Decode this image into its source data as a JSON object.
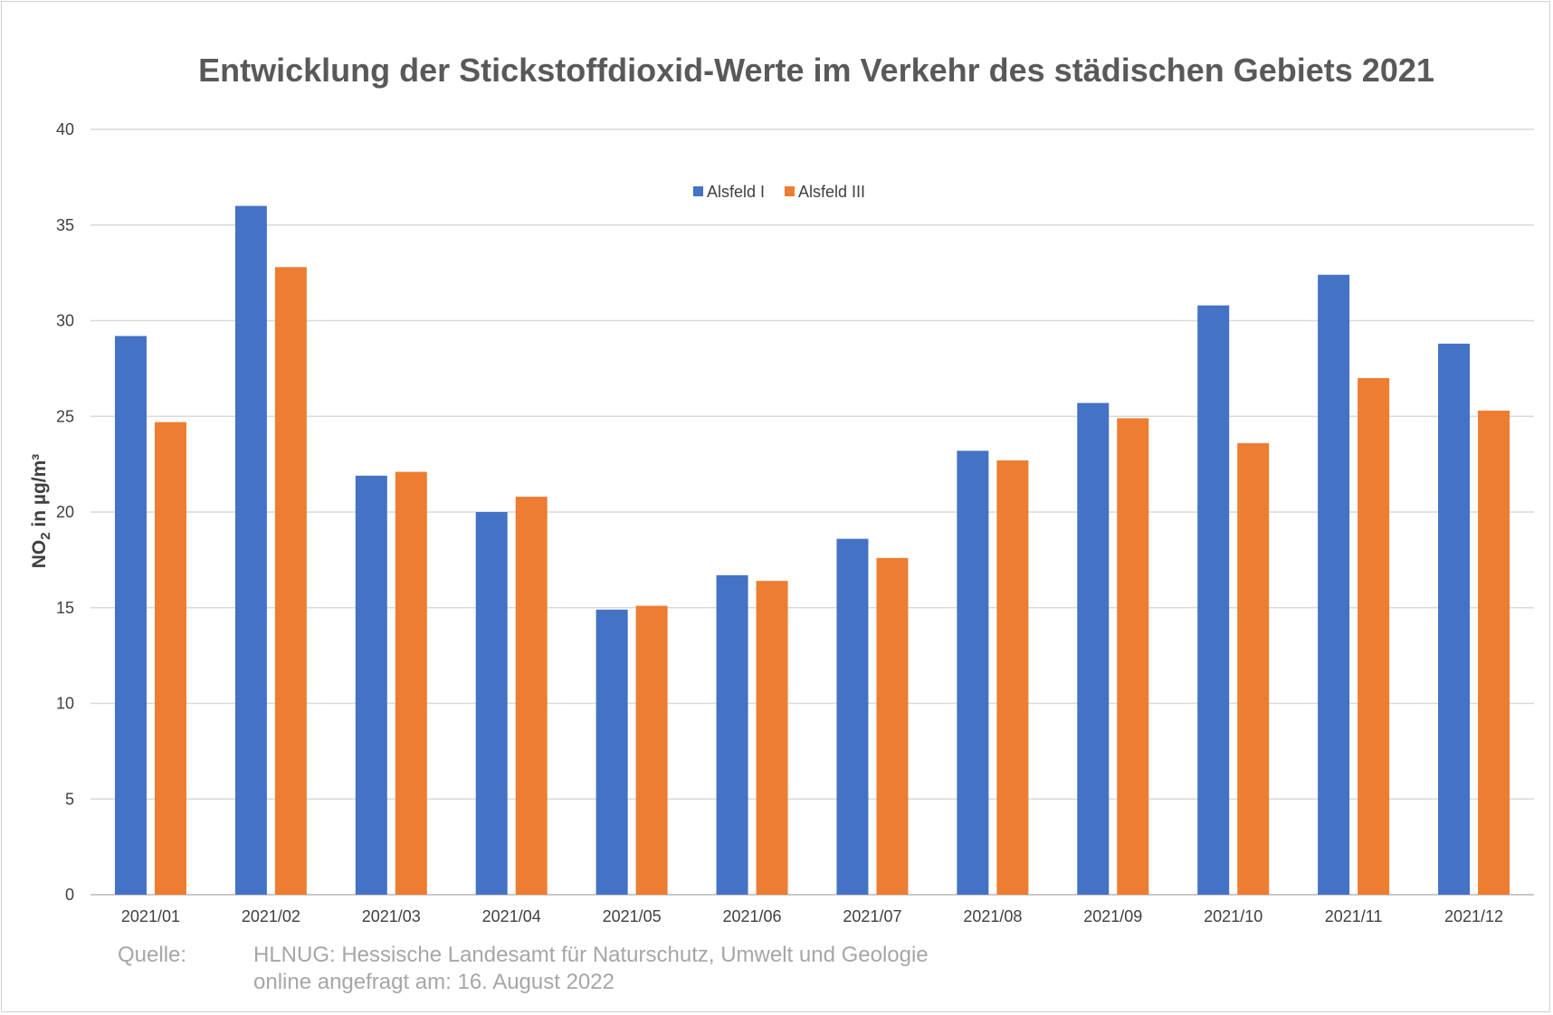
{
  "chart_data": {
    "type": "bar",
    "title": "Entwicklung der Stickstoffdioxid-Werte im Verkehr des städischen Gebiets 2021",
    "ylabel": {
      "main": "NO",
      "sub": "2",
      "unit": " in µg/m³"
    },
    "ylim": [
      0,
      40
    ],
    "yticks": [
      0,
      5,
      10,
      15,
      20,
      25,
      30,
      35,
      40
    ],
    "grid": true,
    "legend_position": "top-center",
    "categories": [
      "2021/01",
      "2021/02",
      "2021/03",
      "2021/04",
      "2021/05",
      "2021/06",
      "2021/07",
      "2021/08",
      "2021/09",
      "2021/10",
      "2021/11",
      "2021/12"
    ],
    "series": [
      {
        "name": "Alsfeld I",
        "color": "#4472c4",
        "values": [
          29.2,
          36.0,
          21.9,
          20.0,
          14.9,
          16.7,
          18.6,
          23.2,
          25.7,
          30.8,
          32.4,
          28.8
        ]
      },
      {
        "name": "Alsfeld III",
        "color": "#ed7d31",
        "values": [
          24.7,
          32.8,
          22.1,
          20.8,
          15.1,
          16.4,
          17.6,
          22.7,
          24.9,
          23.6,
          27.0,
          25.3
        ]
      }
    ]
  },
  "source": {
    "label": "Quelle:",
    "line1": "HLNUG: Hessische Landesamt für Naturschutz, Umwelt und Geologie",
    "line2": "online angefragt am: 16. August 2022"
  }
}
